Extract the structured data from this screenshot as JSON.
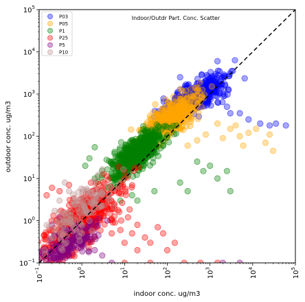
{
  "chart_data": {
    "type": "scatter",
    "title": "Indoor/Outdr Part. Conc. Scatter",
    "xlabel": "indoor conc. ug/m3",
    "ylabel": "outdoor conc. ug/m3",
    "xscale": "log",
    "yscale": "log",
    "xlim": [
      0.1,
      100000
    ],
    "ylim": [
      0.1,
      100000
    ],
    "grid": false,
    "legend_position": "top-left",
    "reference_line": {
      "style": "dashed",
      "color": "#000000",
      "x": [
        0.1,
        100000
      ],
      "y": [
        0.1,
        100000
      ]
    },
    "x_ticks": [
      {
        "value": 0.1,
        "base": "10",
        "exp": "−1"
      },
      {
        "value": 1,
        "base": "10",
        "exp": "0"
      },
      {
        "value": 10,
        "base": "10",
        "exp": "1"
      },
      {
        "value": 100,
        "base": "10",
        "exp": "2"
      },
      {
        "value": 1000,
        "base": "10",
        "exp": "3"
      },
      {
        "value": 10000,
        "base": "10",
        "exp": "4"
      },
      {
        "value": 100000,
        "base": "10",
        "exp": "5"
      }
    ],
    "y_ticks": [
      {
        "value": 0.1,
        "base": "10",
        "exp": "−1"
      },
      {
        "value": 1,
        "base": "10",
        "exp": "0"
      },
      {
        "value": 10,
        "base": "10",
        "exp": "1"
      },
      {
        "value": 100,
        "base": "10",
        "exp": "2"
      },
      {
        "value": 1000,
        "base": "10",
        "exp": "3"
      },
      {
        "value": 10000,
        "base": "10",
        "exp": "4"
      },
      {
        "value": 100000,
        "base": "10",
        "exp": "5"
      }
    ],
    "series": [
      {
        "name": "P03",
        "color": "#0000ff",
        "cluster": {
          "x_center": 500,
          "y_center": 900,
          "x_spread_dec": 0.38,
          "y_spread_dec": 0.25,
          "count": 520
        },
        "points": [
          [
            1500,
            6000
          ],
          [
            3000,
            350
          ],
          [
            8000,
            250
          ],
          [
            15000,
            200
          ],
          [
            25000,
            180
          ],
          [
            60000,
            180
          ],
          [
            35000,
            200
          ],
          [
            5000,
            350
          ],
          [
            2500,
            500
          ],
          [
            1800,
            2000
          ],
          [
            200,
            2500
          ],
          [
            120,
            300
          ]
        ]
      },
      {
        "name": "P05",
        "color": "#ffa500",
        "cluster": {
          "x_center": 120,
          "y_center": 250,
          "x_spread_dec": 0.35,
          "y_spread_dec": 0.3,
          "count": 520
        },
        "points": [
          [
            1500,
            200
          ],
          [
            3000,
            150
          ],
          [
            4000,
            180
          ],
          [
            5000,
            100
          ],
          [
            8000,
            120
          ],
          [
            12000,
            150
          ],
          [
            20000,
            70
          ],
          [
            25000,
            110
          ],
          [
            30000,
            45
          ],
          [
            6000,
            60
          ],
          [
            2000,
            90
          ],
          [
            800,
            110
          ],
          [
            500,
            80
          ],
          [
            300,
            60
          ]
        ]
      },
      {
        "name": "P1",
        "color": "#008000",
        "cluster": {
          "x_center": 20,
          "y_center": 40,
          "x_spread_dec": 0.32,
          "y_spread_dec": 0.3,
          "count": 560
        },
        "points": [
          [
            2,
            55
          ],
          [
            1.5,
            30
          ],
          [
            1.2,
            20
          ],
          [
            3,
            12
          ],
          [
            2,
            10
          ],
          [
            500,
            25
          ],
          [
            700,
            15
          ],
          [
            1000,
            20
          ],
          [
            1500,
            10
          ],
          [
            3000,
            5
          ],
          [
            2500,
            15
          ],
          [
            200,
            8
          ],
          [
            300,
            5
          ],
          [
            50,
            5
          ],
          [
            20,
            3
          ],
          [
            15,
            4
          ],
          [
            8,
            3
          ]
        ]
      },
      {
        "name": "P25",
        "color": "#ff0000",
        "cluster": {
          "x_center": 1,
          "y_center": 1,
          "x_spread_dec": 0.45,
          "y_spread_dec": 0.45,
          "count": 560
        },
        "points": [
          [
            5,
            0.5
          ],
          [
            8,
            0.6
          ],
          [
            10,
            0.3
          ],
          [
            15,
            0.5
          ],
          [
            20,
            0.8
          ],
          [
            30,
            0.4
          ],
          [
            40,
            0.3
          ],
          [
            60,
            0.7
          ],
          [
            80,
            0.5
          ],
          [
            100,
            0.2
          ],
          [
            150,
            0.3
          ],
          [
            20,
            0.2
          ],
          [
            6,
            0.9
          ],
          [
            12,
            1.2
          ],
          [
            0.15,
            4
          ],
          [
            0.2,
            6
          ],
          [
            0.3,
            5
          ],
          [
            0.5,
            7
          ],
          [
            250,
            0.1
          ],
          [
            600,
            0.1
          ],
          [
            1500,
            0.1
          ],
          [
            10,
            0.1
          ],
          [
            40,
            0.1
          ]
        ]
      },
      {
        "name": "P5",
        "color": "#800080",
        "cluster": {
          "x_center": 0.5,
          "y_center": 0.3,
          "x_spread_dec": 0.4,
          "y_spread_dec": 0.3,
          "count": 180
        },
        "points": [
          [
            0.2,
            0.8
          ],
          [
            0.3,
            1.2
          ],
          [
            0.5,
            0.6
          ],
          [
            1,
            0.3
          ],
          [
            2,
            0.2
          ],
          [
            3,
            0.15
          ],
          [
            5,
            0.1
          ],
          [
            0.15,
            0.2
          ],
          [
            0.25,
            0.12
          ],
          [
            2000,
            0.1
          ],
          [
            5000,
            0.1
          ]
        ]
      },
      {
        "name": "P10",
        "color": "#bc8f8f",
        "cluster": {
          "x_center": 0.8,
          "y_center": 1.5,
          "x_spread_dec": 0.4,
          "y_spread_dec": 0.4,
          "count": 140
        },
        "points": [
          [
            0.3,
            3
          ],
          [
            0.5,
            5
          ],
          [
            0.8,
            2
          ],
          [
            1.5,
            1
          ],
          [
            2,
            3
          ],
          [
            0.4,
            8
          ],
          [
            1,
            0.5
          ]
        ]
      }
    ]
  }
}
